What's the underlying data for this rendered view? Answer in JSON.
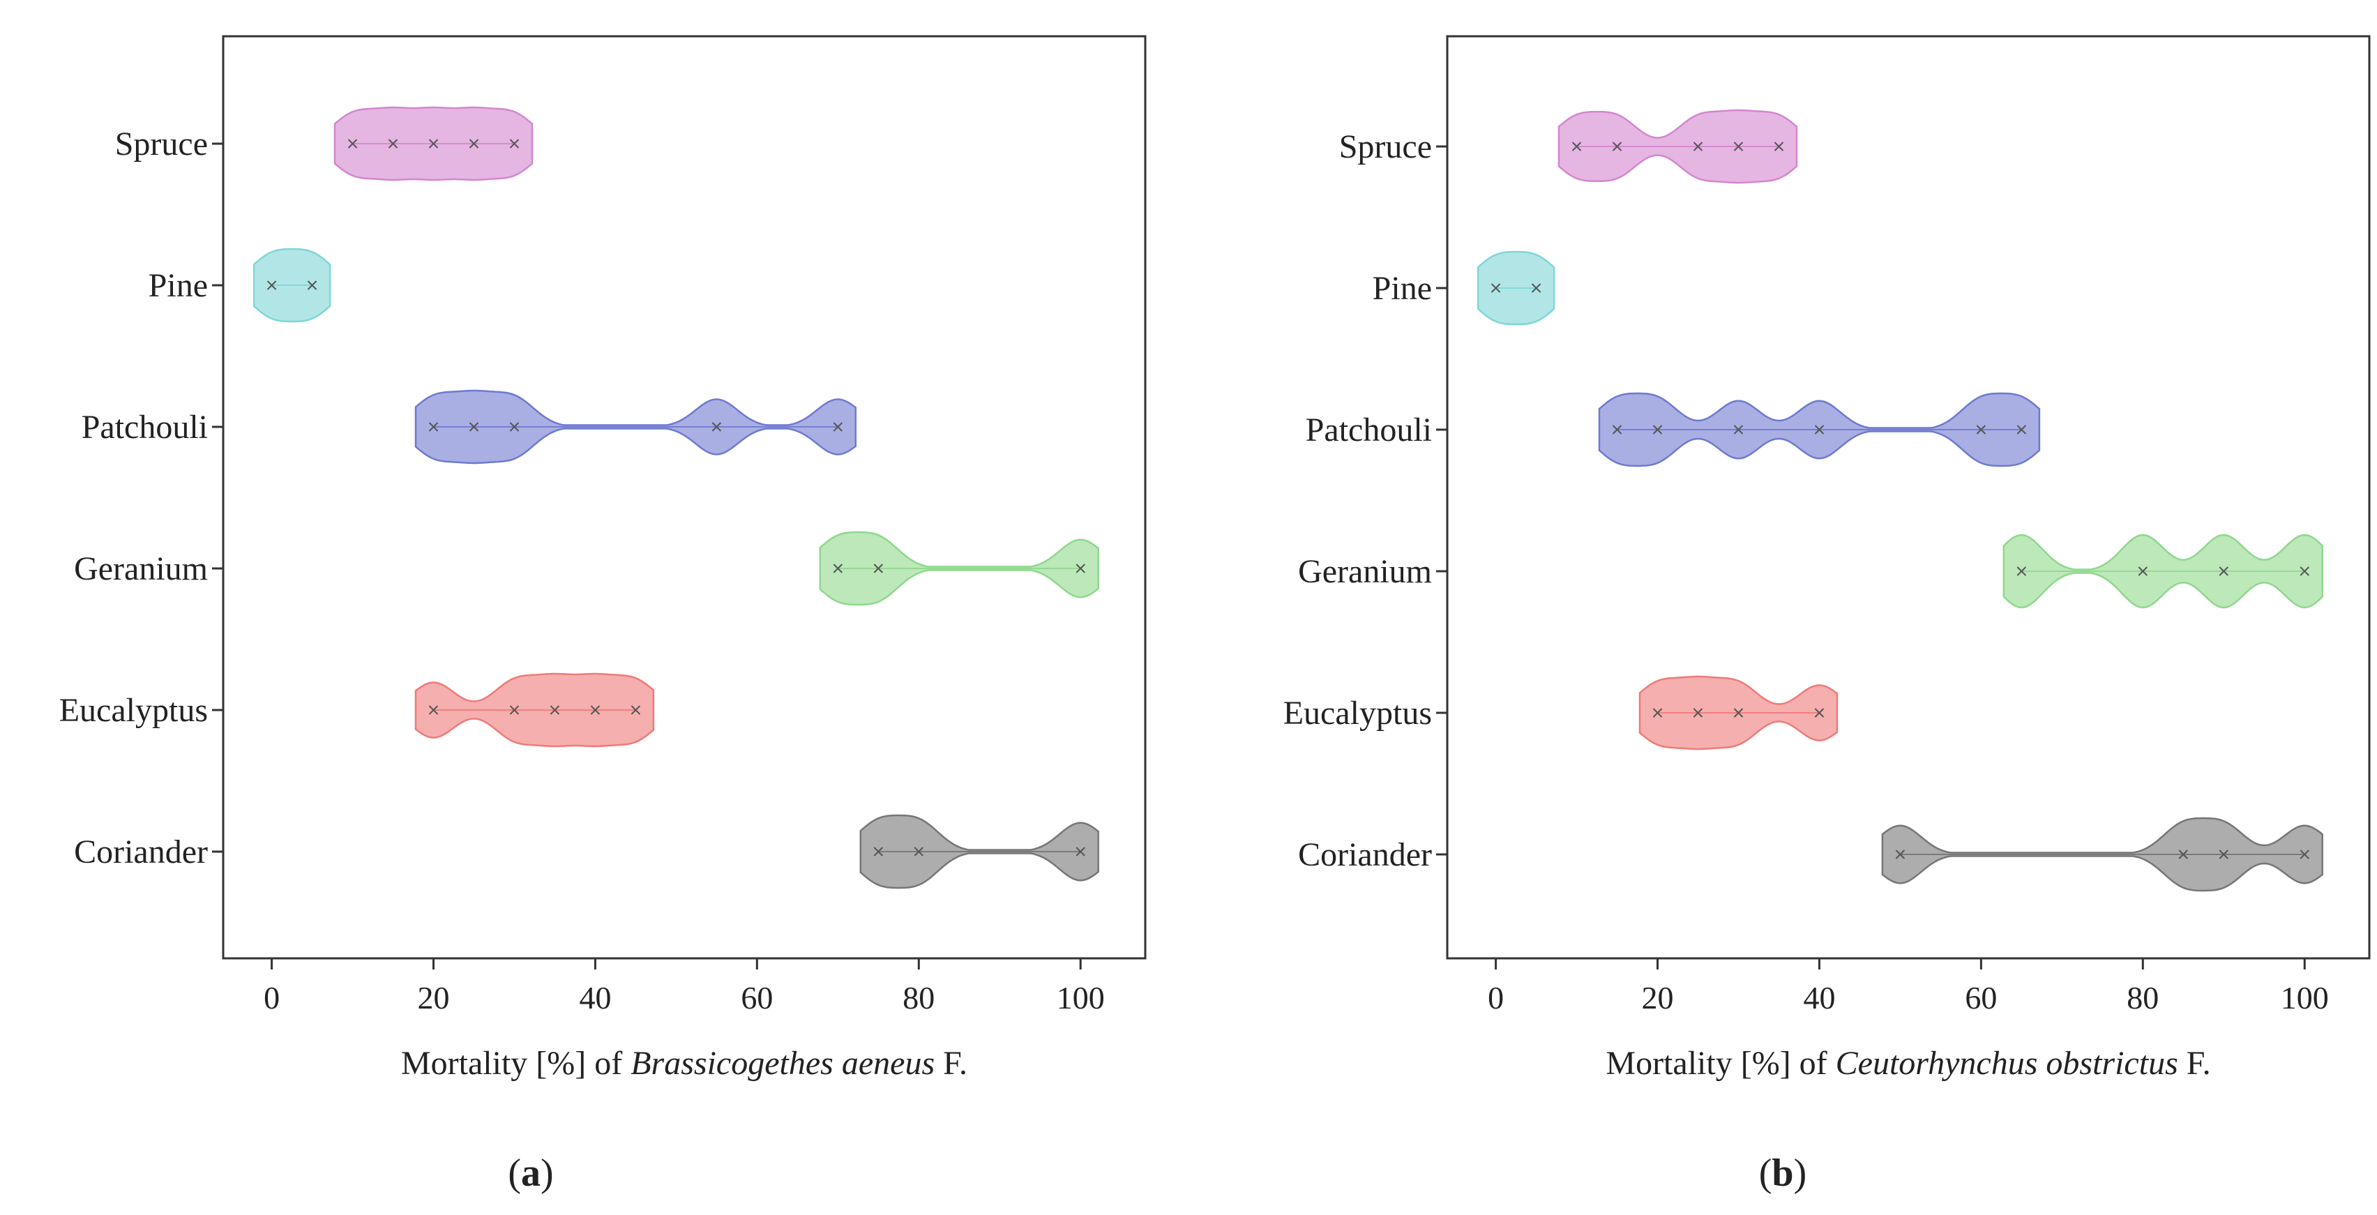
{
  "colors": {
    "Spruce": "#d486cf",
    "Pine": "#7ed6d6",
    "Patchouli": "#6f79d0",
    "Geranium": "#8fd88c",
    "Eucalyptus": "#ef7a78",
    "Coriander": "#767676"
  },
  "chart_data": [
    {
      "type": "violin",
      "panel_label": "(a)",
      "panel_letter": "a",
      "xlabel": "Mortality [%] of Brassicogethes aeneus F.",
      "xlabel_parts": {
        "prefix": "Mortality [%] of ",
        "species": "Brassicogethes aeneus",
        "suffix": " F."
      },
      "xlim": [
        -6,
        108
      ],
      "xticks": [
        0,
        20,
        40,
        60,
        80,
        100
      ],
      "categories": [
        "Spruce",
        "Pine",
        "Patchouli",
        "Geranium",
        "Eucalyptus",
        "Coriander"
      ],
      "series": [
        {
          "name": "Spruce",
          "points": [
            10,
            15,
            20,
            25,
            30
          ]
        },
        {
          "name": "Pine",
          "points": [
            0,
            5
          ]
        },
        {
          "name": "Patchouli",
          "points": [
            20,
            25,
            30,
            55,
            70
          ]
        },
        {
          "name": "Geranium",
          "points": [
            70,
            75,
            100
          ]
        },
        {
          "name": "Eucalyptus",
          "points": [
            20,
            30,
            35,
            40,
            45
          ]
        },
        {
          "name": "Coriander",
          "points": [
            75,
            80,
            100
          ]
        }
      ]
    },
    {
      "type": "violin",
      "panel_label": "(b)",
      "panel_letter": "b",
      "xlabel": "Mortality [%] of Ceutorhynchus obstrictus F.",
      "xlabel_parts": {
        "prefix": "Mortality [%] of ",
        "species": "Ceutorhynchus obstrictus",
        "suffix": " F."
      },
      "xlim": [
        -6,
        108
      ],
      "xticks": [
        0,
        20,
        40,
        60,
        80,
        100
      ],
      "categories": [
        "Spruce",
        "Pine",
        "Patchouli",
        "Geranium",
        "Eucalyptus",
        "Coriander"
      ],
      "series": [
        {
          "name": "Spruce",
          "points": [
            10,
            15,
            25,
            30,
            35
          ]
        },
        {
          "name": "Pine",
          "points": [
            0,
            5
          ]
        },
        {
          "name": "Patchouli",
          "points": [
            15,
            20,
            30,
            40,
            60,
            65
          ]
        },
        {
          "name": "Geranium",
          "points": [
            65,
            80,
            90,
            100
          ]
        },
        {
          "name": "Eucalyptus",
          "points": [
            20,
            25,
            30,
            40
          ]
        },
        {
          "name": "Coriander",
          "points": [
            50,
            85,
            90,
            100
          ]
        }
      ]
    }
  ]
}
